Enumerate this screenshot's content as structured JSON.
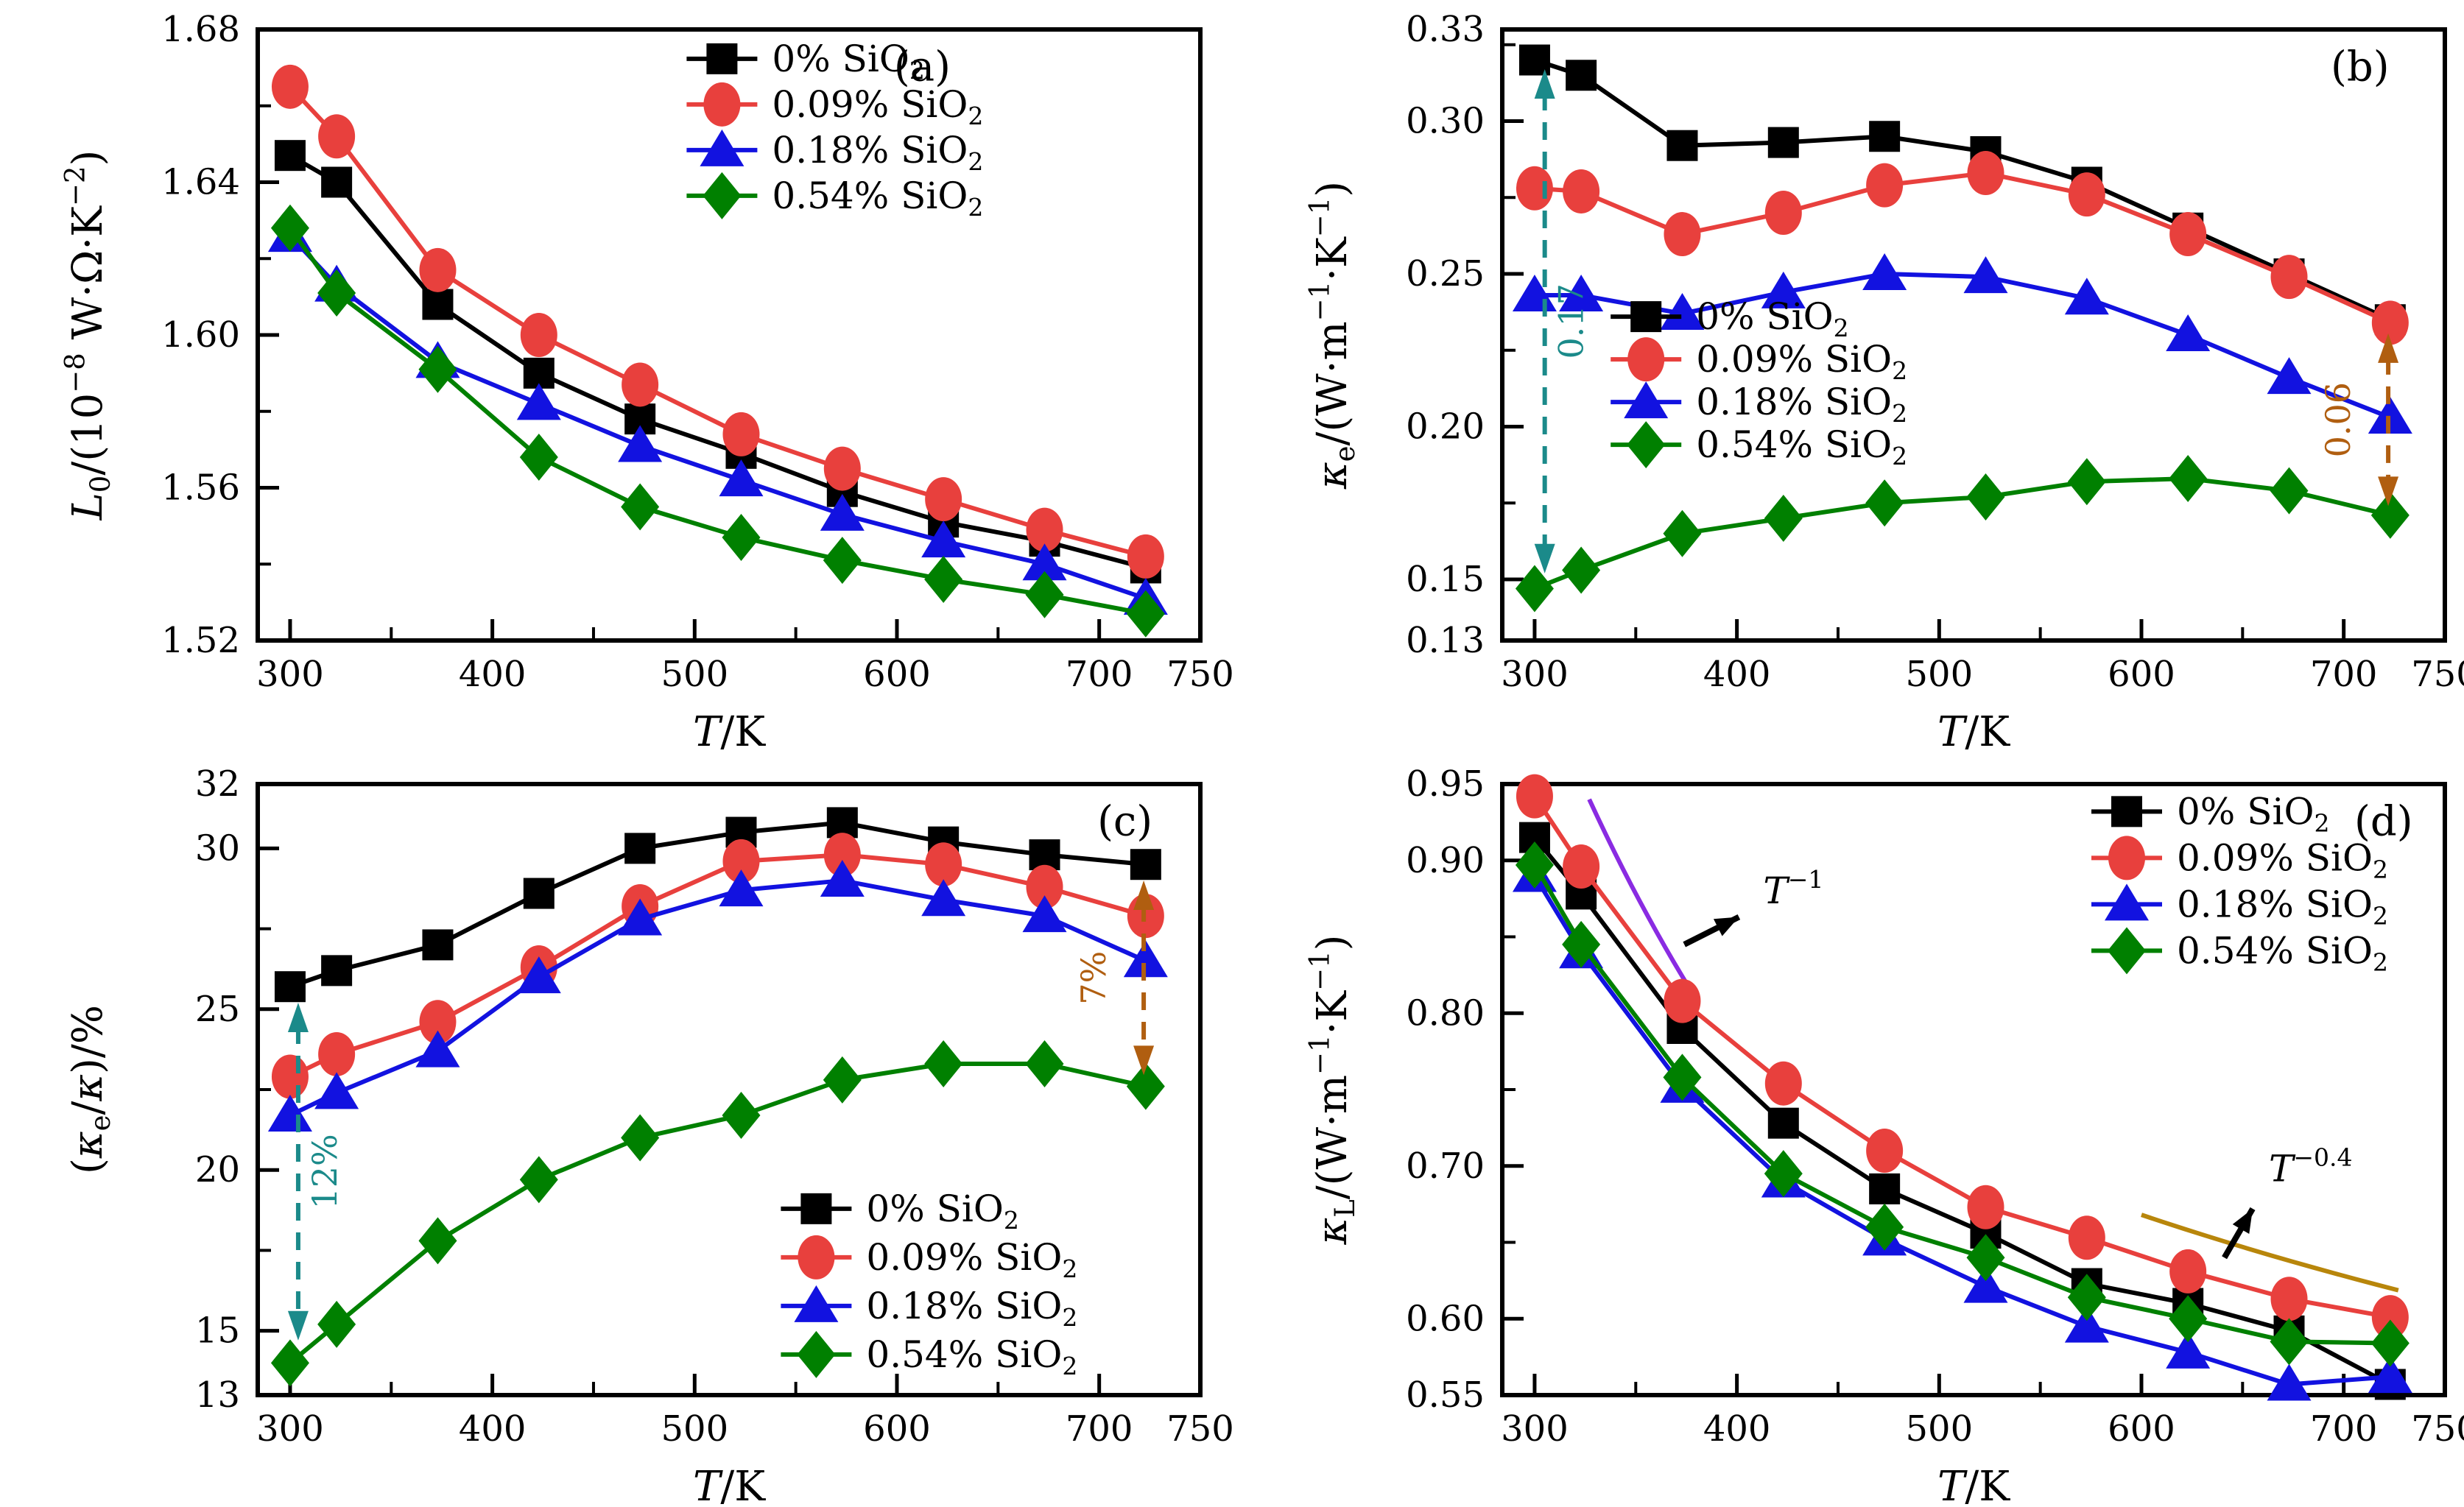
{
  "x_axis": {
    "label": "*T*/K",
    "min": 284,
    "max": 750,
    "major": [
      {
        "v": 300,
        "t": "300"
      },
      {
        "v": 400,
        "t": "400"
      },
      {
        "v": 500,
        "t": "500"
      },
      {
        "v": 600,
        "t": "600"
      },
      {
        "v": 700,
        "t": "700"
      },
      {
        "v": 750,
        "t": "750"
      }
    ],
    "minor": [
      350,
      450,
      550,
      650
    ]
  },
  "sample_temperatures": [
    300,
    323,
    373,
    423,
    473,
    523,
    573,
    623,
    673,
    723
  ],
  "series_meta": [
    {
      "name": "0% SiO_{2}",
      "marker": "square",
      "color": "#000000"
    },
    {
      "name": "0.09% SiO_{2}",
      "marker": "circle",
      "color": "#e8403d"
    },
    {
      "name": "0.18% SiO_{2}",
      "marker": "triangle",
      "color": "#1212e0"
    },
    {
      "name": "0.54% SiO_{2}",
      "marker": "diamond",
      "color": "#008000"
    }
  ],
  "annotation_colors": {
    "teal": "#1b8a8a",
    "brown": "#b05e10",
    "purple": "#8a2be2",
    "olive": "#b8860b"
  },
  "chart_data": [
    {
      "id": "a",
      "type": "line",
      "tag": "(a)",
      "ylabel": "*L*_{0}/(10^{−8} W·Ω·K^{−2})",
      "xlabel": "*T*/K",
      "ylim": [
        1.52,
        1.68
      ],
      "yticks": [
        {
          "v": 1.52,
          "t": "1.52"
        },
        {
          "v": 1.56,
          "t": "1.56"
        },
        {
          "v": 1.6,
          "t": "1.60"
        },
        {
          "v": 1.64,
          "t": "1.64"
        },
        {
          "v": 1.68,
          "t": "1.68"
        }
      ],
      "yminor": [
        1.54,
        1.58,
        1.62,
        1.66
      ],
      "series": [
        {
          "values": [
            1.647,
            1.64,
            1.608,
            1.59,
            1.578,
            1.569,
            1.559,
            1.551,
            1.546,
            1.539
          ]
        },
        {
          "values": [
            1.665,
            1.652,
            1.617,
            1.6,
            1.587,
            1.574,
            1.565,
            1.557,
            1.549,
            1.542
          ]
        },
        {
          "values": [
            1.626,
            1.613,
            1.593,
            1.582,
            1.571,
            1.562,
            1.553,
            1.546,
            1.54,
            1.531
          ]
        },
        {
          "values": [
            1.628,
            1.611,
            1.591,
            1.568,
            1.555,
            1.547,
            1.541,
            1.536,
            1.532,
            1.527
          ]
        }
      ],
      "annotations": [],
      "ref_lines": []
    },
    {
      "id": "b",
      "type": "line",
      "tag": "(b)",
      "ylabel": "*κ*_{e}/(W·m^{−1}·K^{−1})",
      "xlabel": "*T*/K",
      "ylim": [
        0.13,
        0.33
      ],
      "yticks": [
        {
          "v": 0.13,
          "t": "0.13"
        },
        {
          "v": 0.15,
          "t": "0.15"
        },
        {
          "v": 0.2,
          "t": "0.20"
        },
        {
          "v": 0.25,
          "t": "0.25"
        },
        {
          "v": 0.3,
          "t": "0.30"
        },
        {
          "v": 0.33,
          "t": "0.33"
        }
      ],
      "yminor": [
        0.175,
        0.225,
        0.275,
        0.325
      ],
      "series": [
        {
          "values": [
            0.32,
            0.315,
            0.292,
            0.293,
            0.295,
            0.29,
            0.28,
            0.265,
            0.25,
            0.235
          ]
        },
        {
          "values": [
            0.278,
            0.277,
            0.263,
            0.27,
            0.279,
            0.283,
            0.276,
            0.263,
            0.249,
            0.234
          ]
        },
        {
          "values": [
            0.243,
            0.243,
            0.237,
            0.244,
            0.25,
            0.249,
            0.242,
            0.23,
            0.216,
            0.203
          ]
        },
        {
          "values": [
            0.147,
            0.153,
            0.165,
            0.17,
            0.175,
            0.177,
            0.182,
            0.183,
            0.179,
            0.171
          ]
        }
      ],
      "annotations": [
        {
          "kind": "v-double-arrow",
          "x": 305,
          "y_from": 0.152,
          "y_to": 0.317,
          "color": "#1b8a8a",
          "label": "0.17",
          "label_side": "right"
        },
        {
          "kind": "v-double-arrow",
          "x": 722,
          "y_from": 0.174,
          "y_to": 0.2305,
          "color": "#b05e10",
          "label": "0.06",
          "label_side": "left"
        }
      ],
      "ref_lines": []
    },
    {
      "id": "c",
      "type": "line",
      "tag": "(c)",
      "ylabel": "(*κ*_{e}/*κ*)/%",
      "xlabel": "*T*/K",
      "ylim": [
        13,
        32
      ],
      "yticks": [
        {
          "v": 13,
          "t": "13"
        },
        {
          "v": 15,
          "t": "15"
        },
        {
          "v": 20,
          "t": "20"
        },
        {
          "v": 25,
          "t": "25"
        },
        {
          "v": 30,
          "t": "30"
        },
        {
          "v": 32,
          "t": "32"
        }
      ],
      "yminor": [
        17.5,
        22.5,
        27.5
      ],
      "series": [
        {
          "values": [
            25.7,
            26.2,
            27.0,
            28.6,
            30.0,
            30.5,
            30.8,
            30.2,
            29.8,
            29.5
          ]
        },
        {
          "values": [
            22.9,
            23.6,
            24.6,
            26.3,
            28.2,
            29.6,
            29.8,
            29.5,
            28.8,
            27.9
          ]
        },
        {
          "values": [
            21.7,
            22.4,
            23.7,
            26.0,
            27.8,
            28.7,
            29.0,
            28.4,
            27.9,
            26.5
          ]
        },
        {
          "values": [
            14.0,
            15.2,
            17.8,
            19.7,
            21.0,
            21.7,
            22.8,
            23.3,
            23.3,
            22.6
          ]
        }
      ],
      "annotations": [
        {
          "kind": "v-double-arrow",
          "x": 304,
          "y_from": 14.7,
          "y_to": 25.2,
          "color": "#1b8a8a",
          "label": "12%",
          "label_side": "right"
        },
        {
          "kind": "v-double-arrow",
          "x": 722,
          "y_from": 22.95,
          "y_to": 29.0,
          "color": "#b05e10",
          "label": "7%",
          "label_side": "left"
        }
      ],
      "ref_lines": []
    },
    {
      "id": "d",
      "type": "line",
      "tag": "(d)",
      "ylabel": "*κ*_{L}/(W·m^{−1}·K^{−1})",
      "xlabel": "*T*/K",
      "ylim": [
        0.55,
        0.95
      ],
      "yticks": [
        {
          "v": 0.55,
          "t": "0.55"
        },
        {
          "v": 0.6,
          "t": "0.60"
        },
        {
          "v": 0.7,
          "t": "0.70"
        },
        {
          "v": 0.8,
          "t": "0.80"
        },
        {
          "v": 0.9,
          "t": "0.90"
        },
        {
          "v": 0.95,
          "t": "0.95"
        }
      ],
      "yminor": [
        0.65,
        0.75,
        0.85
      ],
      "series": [
        {
          "values": [
            0.915,
            0.878,
            0.79,
            0.728,
            0.685,
            0.656,
            0.623,
            0.61,
            0.592,
            0.557
          ]
        },
        {
          "values": [
            0.942,
            0.896,
            0.808,
            0.754,
            0.71,
            0.673,
            0.653,
            0.631,
            0.613,
            0.601
          ]
        },
        {
          "values": [
            0.89,
            0.84,
            0.752,
            0.69,
            0.652,
            0.621,
            0.595,
            0.578,
            0.557,
            0.562
          ]
        },
        {
          "values": [
            0.897,
            0.845,
            0.758,
            0.695,
            0.66,
            0.64,
            0.614,
            0.6,
            0.585,
            0.584
          ]
        }
      ],
      "annotations": [],
      "ref_lines": [
        {
          "label": "*T*^{−1}",
          "color": "#8a2be2",
          "x1": 327,
          "y1": 0.94,
          "x2": 377,
          "y2": 0.816,
          "power": -1,
          "label_x": 413,
          "label_y": 0.872,
          "pointer": {
            "x1": 374,
            "y1": 0.845,
            "x2": 401,
            "y2": 0.863
          }
        },
        {
          "label": "*T*^{−0.4}",
          "color": "#b8860b",
          "x1": 600,
          "y1": 0.668,
          "x2": 727,
          "y2": 0.619,
          "power": -0.4,
          "label_x": 663,
          "label_y": 0.69,
          "pointer": {
            "x1": 641,
            "y1": 0.64,
            "x2": 655,
            "y2": 0.672
          }
        }
      ]
    }
  ]
}
